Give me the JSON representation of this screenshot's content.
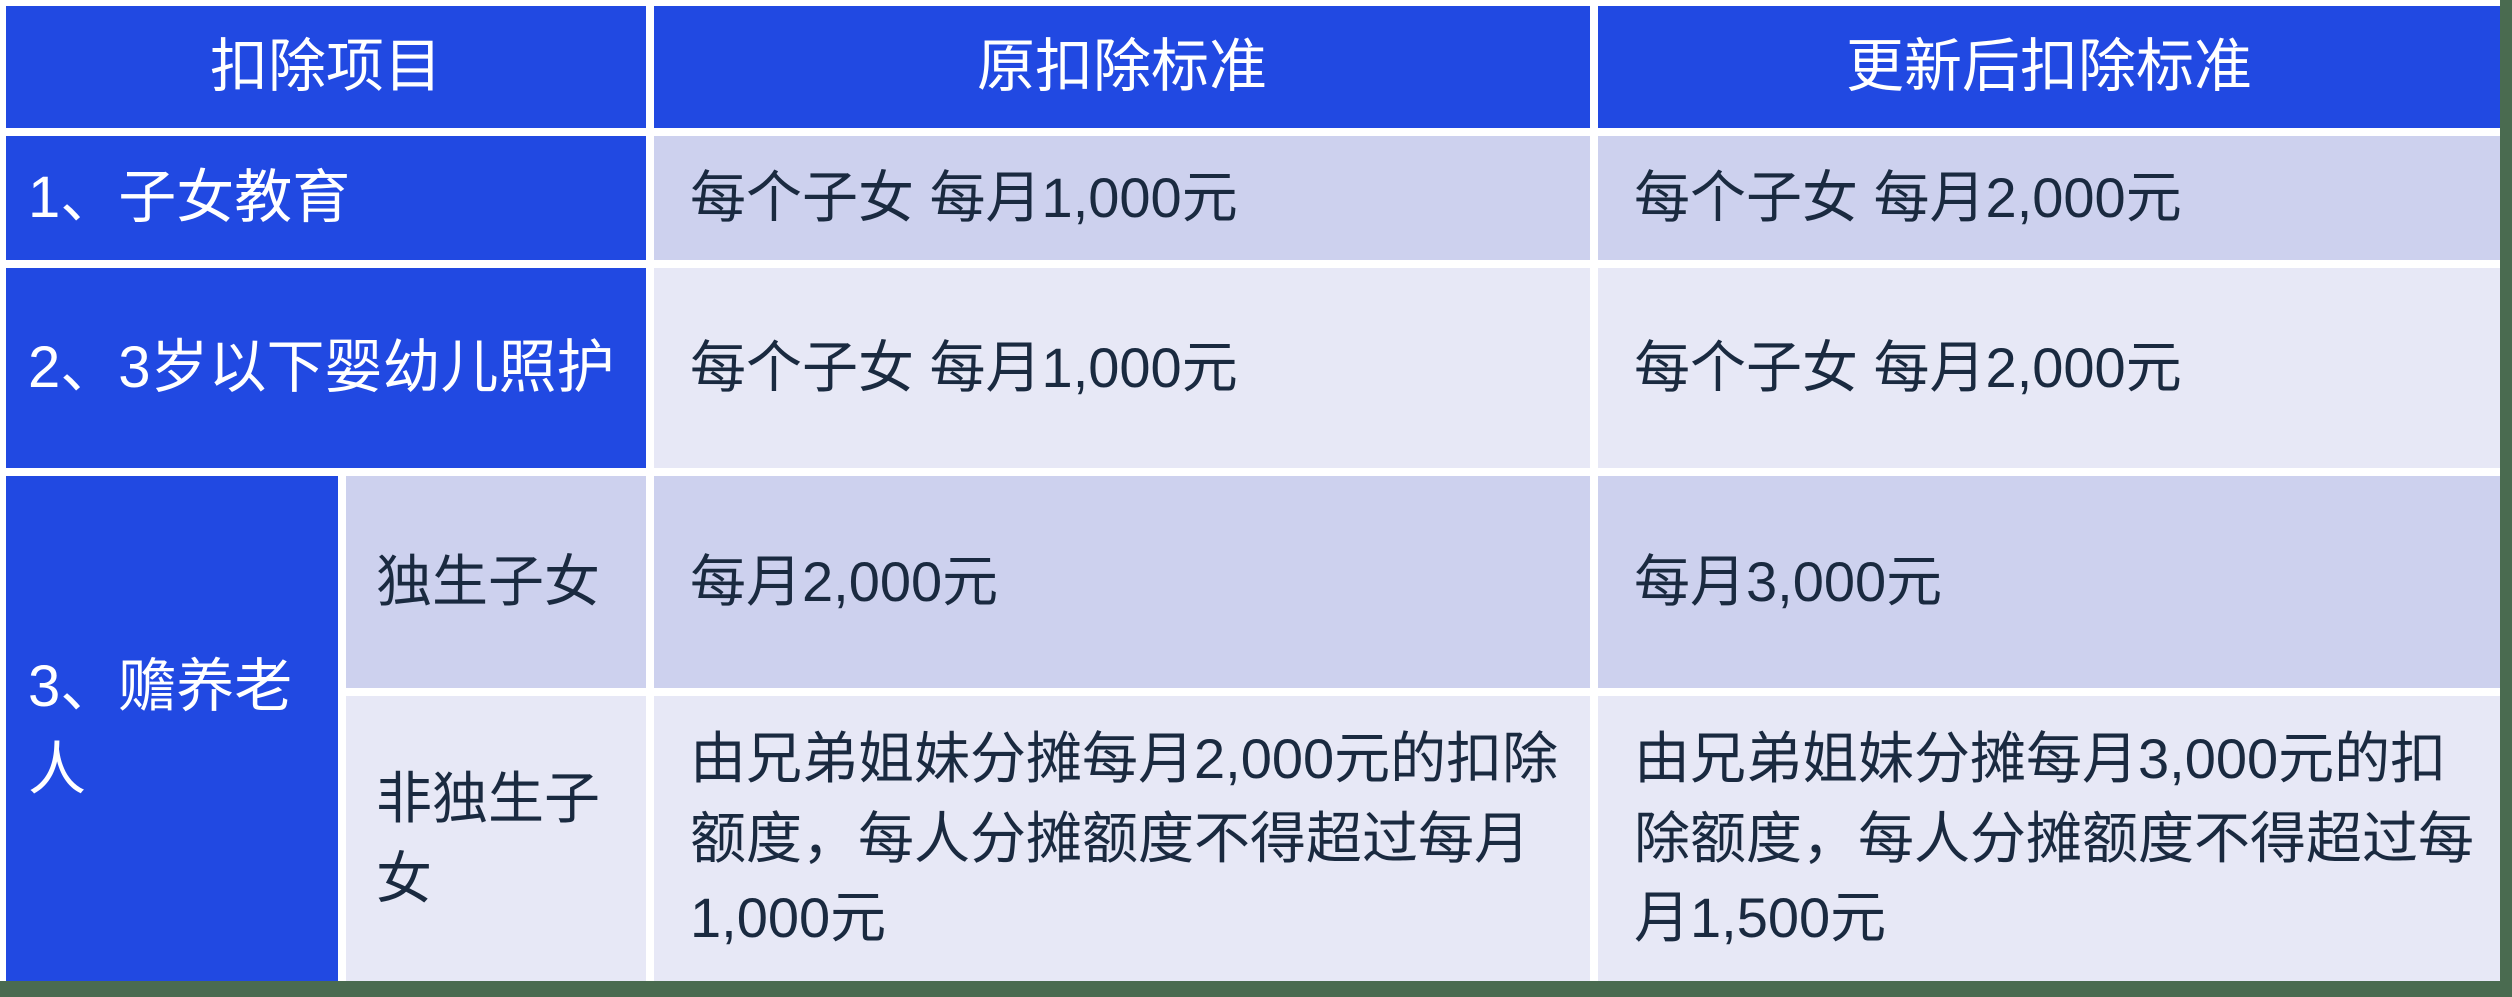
{
  "table": {
    "headers": {
      "item": "扣除项目",
      "old_standard": "原扣除标准",
      "new_standard": "更新后扣除标准"
    },
    "rows": {
      "r1": {
        "item": "1、子女教育",
        "old": "每个子女 每月1,000元",
        "new": "每个子女 每月2,000元"
      },
      "r2": {
        "item": "2、3岁以下婴幼儿照护",
        "old": "每个子女 每月1,000元",
        "new": "每个子女 每月2,000元"
      },
      "r3": {
        "item": "3、赡养老人",
        "sub_only": {
          "label": "独生子女",
          "old": "每月2,000元",
          "new": "每月3,000元"
        },
        "sub_non_only": {
          "label": "非独生子女",
          "old": "由兄弟姐妹分摊每月2,000元的扣除额度，每人分摊额度不得超过每月1,000元",
          "new": "由兄弟姐妹分摊每月3,000元的扣除额度，每人分摊额度不得超过每月1,500元"
        }
      }
    }
  },
  "colors": {
    "blue": "#2149e2",
    "lav-dark": "#cdd1ee",
    "lav-light": "#e7e8f6",
    "ink": "#1a2a40",
    "green": "#4a6b50",
    "page": "#ffffff"
  }
}
